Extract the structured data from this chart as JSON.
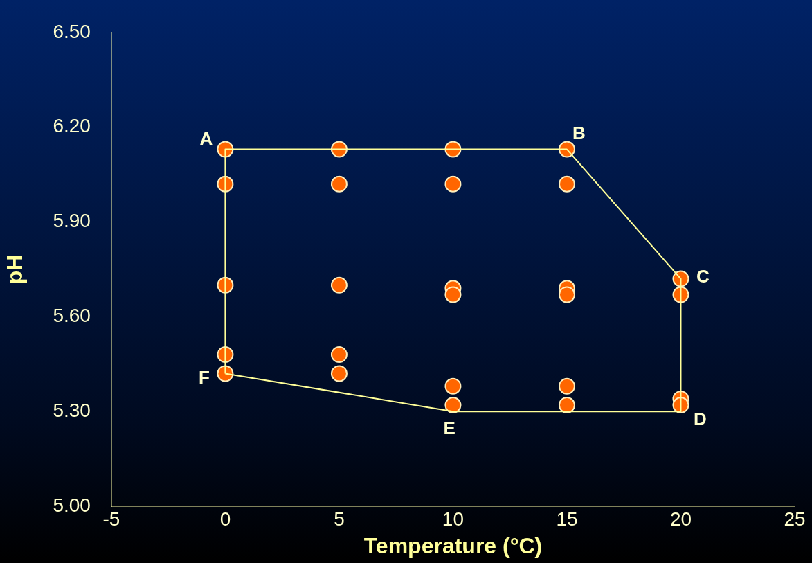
{
  "chart_data": {
    "type": "scatter",
    "xlabel": "Temperature (°C)",
    "ylabel": "pH",
    "xlim": [
      -5,
      25
    ],
    "xticks": [
      -5,
      0,
      5,
      10,
      15,
      20,
      25
    ],
    "ylim": [
      5.0,
      6.5
    ],
    "yticks": [
      {
        "value": 5.0,
        "label": "5.00"
      },
      {
        "value": 5.3,
        "label": "5.30"
      },
      {
        "value": 5.6,
        "label": "5.60"
      },
      {
        "value": 5.9,
        "label": "5.90"
      },
      {
        "value": 6.2,
        "label": "6.20"
      },
      {
        "value": 6.5,
        "label": "6.50"
      }
    ],
    "grid": false,
    "legend": false,
    "marker": "circle",
    "series": [
      {
        "type": "line",
        "color": "#ffff99",
        "marker": "none",
        "x": [
          0,
          0,
          15,
          20,
          20
        ],
        "values": [
          5.42,
          6.13,
          6.13,
          5.72,
          5.3
        ]
      },
      {
        "type": "line",
        "color": "#ffff99",
        "marker": "none",
        "x": [
          0,
          10,
          20
        ],
        "values": [
          5.42,
          5.3,
          5.3
        ]
      },
      {
        "color": "#ff6600",
        "x": [
          0,
          0,
          0,
          0,
          0,
          5,
          5,
          5,
          5,
          5,
          10,
          10,
          10,
          10,
          10,
          10,
          15,
          15,
          15,
          15,
          15,
          15,
          20,
          20,
          20,
          20
        ],
        "values": [
          6.13,
          6.02,
          5.7,
          5.48,
          5.42,
          6.13,
          6.02,
          5.7,
          5.48,
          5.42,
          6.13,
          6.02,
          5.69,
          5.67,
          5.38,
          5.32,
          6.13,
          6.02,
          5.69,
          5.67,
          5.38,
          5.32,
          5.72,
          5.67,
          5.34,
          5.32
        ]
      }
    ],
    "annotations": [
      {
        "text": "A",
        "x": 0,
        "y": 6.13
      },
      {
        "text": "B",
        "x": 15,
        "y": 6.13
      },
      {
        "text": "C",
        "x": 20,
        "y": 5.72
      },
      {
        "text": "D",
        "x": 20,
        "y": 5.3
      },
      {
        "text": "E",
        "x": 10,
        "y": 5.3
      },
      {
        "text": "F",
        "x": 0,
        "y": 5.42
      }
    ]
  }
}
